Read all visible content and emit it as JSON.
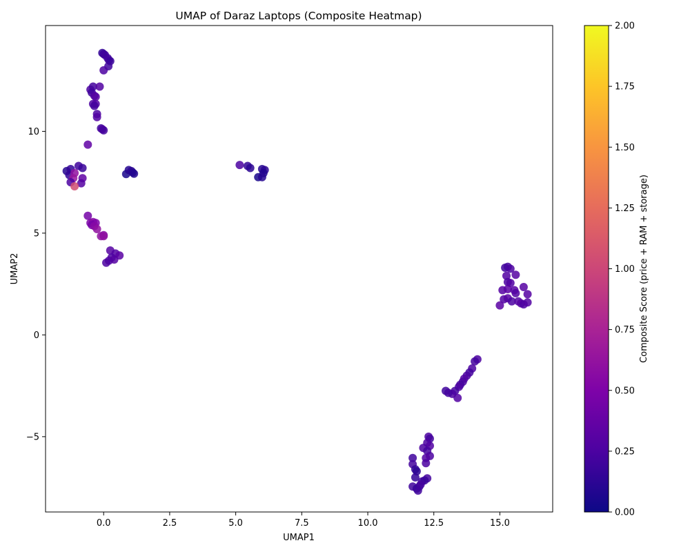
{
  "chart_data": {
    "type": "scatter",
    "title": "UMAP of Daraz Laptops (Composite Heatmap)",
    "xlabel": "UMAP1",
    "ylabel": "UMAP2",
    "xlim": [
      -2.2,
      17.0
    ],
    "ylim": [
      -8.7,
      15.2
    ],
    "xticks": [
      0.0,
      2.5,
      5.0,
      7.5,
      10.0,
      12.5,
      15.0
    ],
    "xtick_labels": [
      "0.0",
      "2.5",
      "5.0",
      "7.5",
      "10.0",
      "12.5",
      "15.0"
    ],
    "yticks": [
      -5,
      0,
      5,
      10
    ],
    "ytick_labels": [
      "−5",
      "0",
      "5",
      "10"
    ],
    "grid": false,
    "colorbar": {
      "label": "Composite Score (price + RAM + storage)",
      "colormap": "plasma",
      "range": [
        0.0,
        2.0
      ],
      "ticks": [
        0.0,
        0.25,
        0.5,
        0.75,
        1.0,
        1.25,
        1.5,
        1.75,
        2.0
      ],
      "tick_labels": [
        "0.00",
        "0.25",
        "0.50",
        "0.75",
        "1.00",
        "1.25",
        "1.50",
        "1.75",
        "2.00"
      ]
    },
    "points": [
      {
        "x": -0.05,
        "y": 13.85,
        "c": 0.15
      },
      {
        "x": 0.0,
        "y": 13.8,
        "c": 0.18
      },
      {
        "x": 0.05,
        "y": 13.75,
        "c": 0.2
      },
      {
        "x": 0.15,
        "y": 13.6,
        "c": 0.2
      },
      {
        "x": 0.2,
        "y": 13.5,
        "c": 0.22
      },
      {
        "x": 0.25,
        "y": 13.45,
        "c": 0.18
      },
      {
        "x": 0.18,
        "y": 13.2,
        "c": 0.2
      },
      {
        "x": 0.0,
        "y": 13.0,
        "c": 0.25
      },
      {
        "x": -0.5,
        "y": 12.05,
        "c": 0.25
      },
      {
        "x": -0.4,
        "y": 12.2,
        "c": 0.22
      },
      {
        "x": -0.15,
        "y": 12.2,
        "c": 0.28
      },
      {
        "x": -0.45,
        "y": 11.9,
        "c": 0.2
      },
      {
        "x": -0.35,
        "y": 11.75,
        "c": 0.25
      },
      {
        "x": -0.3,
        "y": 11.7,
        "c": 0.3
      },
      {
        "x": -0.4,
        "y": 11.35,
        "c": 0.25
      },
      {
        "x": -0.3,
        "y": 11.35,
        "c": 0.28
      },
      {
        "x": -0.35,
        "y": 11.25,
        "c": 0.22
      },
      {
        "x": -0.25,
        "y": 10.85,
        "c": 0.25
      },
      {
        "x": -0.25,
        "y": 10.7,
        "c": 0.28
      },
      {
        "x": -0.1,
        "y": 10.15,
        "c": 0.2
      },
      {
        "x": -0.05,
        "y": 10.1,
        "c": 0.25
      },
      {
        "x": 0.0,
        "y": 10.05,
        "c": 0.22
      },
      {
        "x": -0.6,
        "y": 9.35,
        "c": 0.35
      },
      {
        "x": -1.4,
        "y": 8.05,
        "c": 0.1
      },
      {
        "x": -1.25,
        "y": 8.15,
        "c": 0.15
      },
      {
        "x": -0.95,
        "y": 8.3,
        "c": 0.2
      },
      {
        "x": -0.8,
        "y": 8.2,
        "c": 0.18
      },
      {
        "x": -1.3,
        "y": 7.85,
        "c": 0.15
      },
      {
        "x": -1.1,
        "y": 7.95,
        "c": 0.6
      },
      {
        "x": -1.15,
        "y": 7.7,
        "c": 0.65
      },
      {
        "x": -0.8,
        "y": 7.7,
        "c": 0.35
      },
      {
        "x": -1.25,
        "y": 7.5,
        "c": 0.25
      },
      {
        "x": -0.85,
        "y": 7.45,
        "c": 0.3
      },
      {
        "x": -1.1,
        "y": 7.3,
        "c": 1.05
      },
      {
        "x": 0.85,
        "y": 7.9,
        "c": 0.05
      },
      {
        "x": 0.95,
        "y": 8.1,
        "c": 0.1
      },
      {
        "x": 1.05,
        "y": 8.05,
        "c": 0.12
      },
      {
        "x": 1.1,
        "y": 7.98,
        "c": 0.1
      },
      {
        "x": 1.15,
        "y": 7.92,
        "c": 0.08
      },
      {
        "x": 5.15,
        "y": 8.35,
        "c": 0.25
      },
      {
        "x": 5.45,
        "y": 8.3,
        "c": 0.15
      },
      {
        "x": 5.55,
        "y": 8.2,
        "c": 0.12
      },
      {
        "x": 6.0,
        "y": 8.15,
        "c": 0.1
      },
      {
        "x": 6.1,
        "y": 8.1,
        "c": 0.12
      },
      {
        "x": 6.05,
        "y": 7.95,
        "c": 0.08
      },
      {
        "x": 5.85,
        "y": 7.75,
        "c": 0.05
      },
      {
        "x": 6.0,
        "y": 7.75,
        "c": 0.1
      },
      {
        "x": -0.6,
        "y": 5.85,
        "c": 0.45
      },
      {
        "x": -0.5,
        "y": 5.5,
        "c": 0.5
      },
      {
        "x": -0.4,
        "y": 5.55,
        "c": 0.55
      },
      {
        "x": -0.3,
        "y": 5.5,
        "c": 0.5
      },
      {
        "x": -0.45,
        "y": 5.4,
        "c": 0.45
      },
      {
        "x": -0.35,
        "y": 5.35,
        "c": 0.55
      },
      {
        "x": -0.25,
        "y": 5.2,
        "c": 0.6
      },
      {
        "x": -0.1,
        "y": 4.85,
        "c": 0.6
      },
      {
        "x": 0.0,
        "y": 4.9,
        "c": 0.55
      },
      {
        "x": 0.0,
        "y": 4.85,
        "c": 0.6
      },
      {
        "x": 0.25,
        "y": 4.15,
        "c": 0.3
      },
      {
        "x": 0.45,
        "y": 4.0,
        "c": 0.28
      },
      {
        "x": 0.6,
        "y": 3.9,
        "c": 0.32
      },
      {
        "x": 0.3,
        "y": 3.8,
        "c": 0.25
      },
      {
        "x": 0.4,
        "y": 3.7,
        "c": 0.3
      },
      {
        "x": 0.2,
        "y": 3.65,
        "c": 0.28
      },
      {
        "x": 0.1,
        "y": 3.55,
        "c": 0.25
      },
      {
        "x": 15.2,
        "y": 3.3,
        "c": 0.2
      },
      {
        "x": 15.3,
        "y": 3.35,
        "c": 0.22
      },
      {
        "x": 15.4,
        "y": 3.25,
        "c": 0.25
      },
      {
        "x": 15.25,
        "y": 2.9,
        "c": 0.28
      },
      {
        "x": 15.6,
        "y": 2.95,
        "c": 0.3
      },
      {
        "x": 15.3,
        "y": 2.6,
        "c": 0.25
      },
      {
        "x": 15.4,
        "y": 2.55,
        "c": 0.28
      },
      {
        "x": 15.9,
        "y": 2.35,
        "c": 0.3
      },
      {
        "x": 15.1,
        "y": 2.2,
        "c": 0.3
      },
      {
        "x": 15.3,
        "y": 2.25,
        "c": 0.32
      },
      {
        "x": 15.55,
        "y": 2.2,
        "c": 0.3
      },
      {
        "x": 15.6,
        "y": 2.05,
        "c": 0.28
      },
      {
        "x": 16.05,
        "y": 2.0,
        "c": 0.3
      },
      {
        "x": 15.15,
        "y": 1.75,
        "c": 0.28
      },
      {
        "x": 15.3,
        "y": 1.8,
        "c": 0.3
      },
      {
        "x": 15.45,
        "y": 1.65,
        "c": 0.25
      },
      {
        "x": 15.7,
        "y": 1.65,
        "c": 0.28
      },
      {
        "x": 15.8,
        "y": 1.55,
        "c": 0.3
      },
      {
        "x": 15.9,
        "y": 1.5,
        "c": 0.25
      },
      {
        "x": 16.05,
        "y": 1.6,
        "c": 0.28
      },
      {
        "x": 15.0,
        "y": 1.45,
        "c": 0.32
      },
      {
        "x": 14.15,
        "y": -1.2,
        "c": 0.25
      },
      {
        "x": 14.05,
        "y": -1.3,
        "c": 0.22
      },
      {
        "x": 13.95,
        "y": -1.65,
        "c": 0.25
      },
      {
        "x": 13.85,
        "y": -1.85,
        "c": 0.22
      },
      {
        "x": 13.75,
        "y": -2.0,
        "c": 0.25
      },
      {
        "x": 13.65,
        "y": -2.15,
        "c": 0.28
      },
      {
        "x": 13.6,
        "y": -2.3,
        "c": 0.25
      },
      {
        "x": 13.5,
        "y": -2.45,
        "c": 0.22
      },
      {
        "x": 13.45,
        "y": -2.55,
        "c": 0.25
      },
      {
        "x": 12.95,
        "y": -2.75,
        "c": 0.2
      },
      {
        "x": 13.3,
        "y": -2.75,
        "c": 0.22
      },
      {
        "x": 13.2,
        "y": -2.9,
        "c": 0.25
      },
      {
        "x": 13.05,
        "y": -2.85,
        "c": 0.22
      },
      {
        "x": 13.4,
        "y": -3.1,
        "c": 0.28
      },
      {
        "x": 12.3,
        "y": -5.0,
        "c": 0.25
      },
      {
        "x": 12.35,
        "y": -5.1,
        "c": 0.22
      },
      {
        "x": 12.25,
        "y": -5.3,
        "c": 0.25
      },
      {
        "x": 12.35,
        "y": -5.45,
        "c": 0.28
      },
      {
        "x": 12.1,
        "y": -5.55,
        "c": 0.25
      },
      {
        "x": 12.25,
        "y": -5.7,
        "c": 0.22
      },
      {
        "x": 12.35,
        "y": -5.95,
        "c": 0.25
      },
      {
        "x": 12.2,
        "y": -6.05,
        "c": 0.28
      },
      {
        "x": 12.2,
        "y": -6.3,
        "c": 0.25
      },
      {
        "x": 11.7,
        "y": -6.05,
        "c": 0.2
      },
      {
        "x": 11.7,
        "y": -6.35,
        "c": 0.22
      },
      {
        "x": 11.8,
        "y": -6.6,
        "c": 0.15
      },
      {
        "x": 11.85,
        "y": -6.7,
        "c": 0.12
      },
      {
        "x": 11.8,
        "y": -7.0,
        "c": 0.15
      },
      {
        "x": 12.25,
        "y": -7.05,
        "c": 0.22
      },
      {
        "x": 12.05,
        "y": -7.2,
        "c": 0.2
      },
      {
        "x": 12.15,
        "y": -7.15,
        "c": 0.18
      },
      {
        "x": 11.7,
        "y": -7.45,
        "c": 0.2
      },
      {
        "x": 11.85,
        "y": -7.55,
        "c": 0.15
      },
      {
        "x": 11.95,
        "y": -7.45,
        "c": 0.18
      },
      {
        "x": 12.0,
        "y": -7.35,
        "c": 0.22
      },
      {
        "x": 11.9,
        "y": -7.65,
        "c": 0.2
      }
    ]
  }
}
